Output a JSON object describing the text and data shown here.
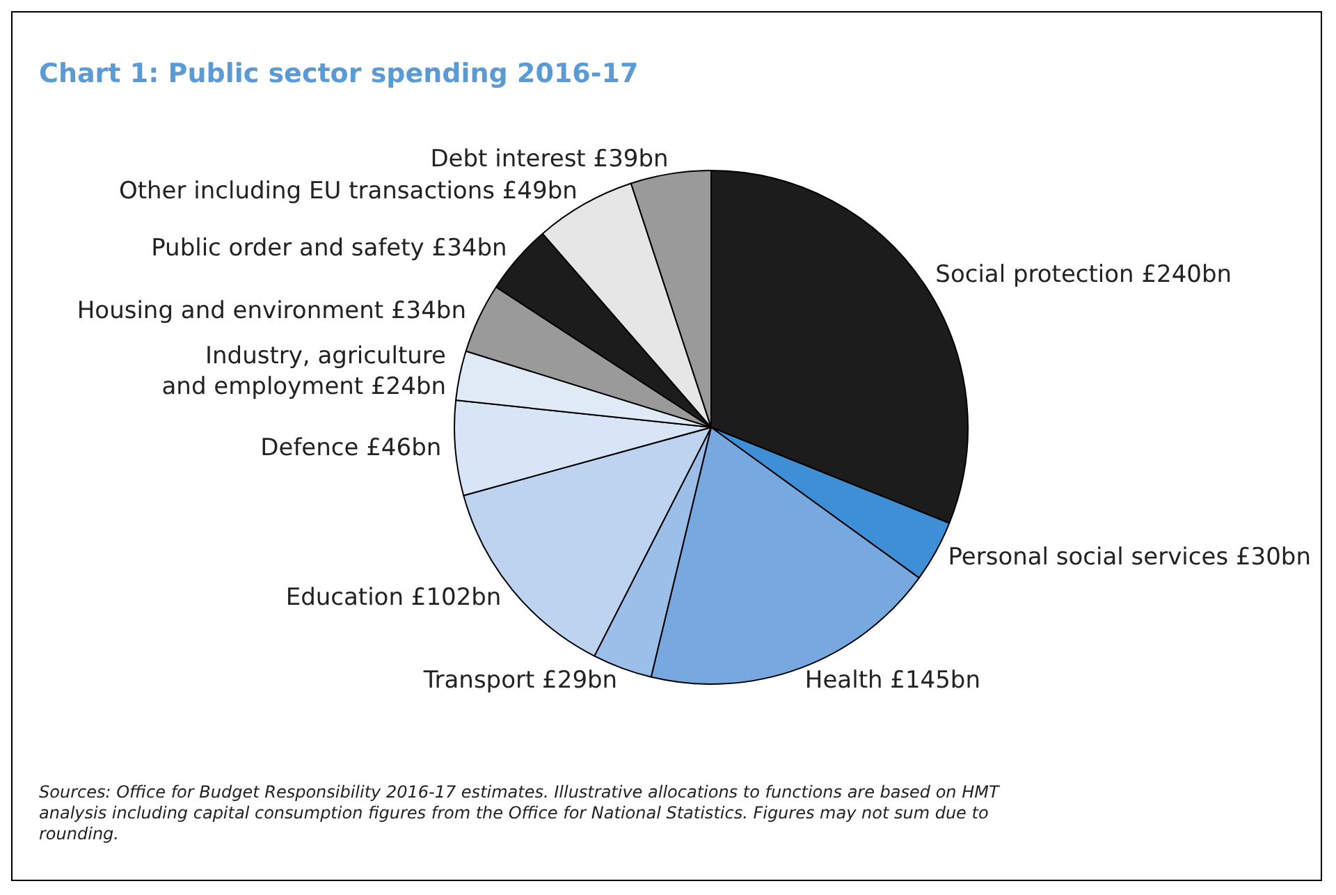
{
  "chart_data": {
    "type": "pie",
    "title": "Chart 1: Public sector spending 2016-17",
    "categories": [
      "Social protection",
      "Personal social services",
      "Health",
      "Transport",
      "Education",
      "Defence",
      "Industry, agriculture and employment",
      "Housing and environment",
      "Public order and safety",
      "Other including EU transactions",
      "Debt interest"
    ],
    "values": [
      240,
      30,
      145,
      29,
      102,
      46,
      24,
      34,
      34,
      49,
      39
    ],
    "value_labels": [
      "£240bn",
      "£30bn",
      "£145bn",
      "£29bn",
      "£102bn",
      "£46bn",
      "£24bn",
      "£34bn",
      "£34bn",
      "£49bn",
      "£39bn"
    ],
    "colors": [
      "#1c1c1c",
      "#3f8fd6",
      "#78a8e0",
      "#9cbfe9",
      "#bdd3ef",
      "#d7e5f6",
      "#e0eaf7",
      "#9a9a9a",
      "#1c1c1c",
      "#e6e6e6",
      "#9a9a9a"
    ],
    "legend": false,
    "annotations": [
      "Sources: Office for Budget Responsibility 2016-17 estimates. Illustrative allocations to functions are based on HMT analysis including capital consumption figures from the Office for National Statistics. Figures may not sum due to rounding."
    ]
  }
}
